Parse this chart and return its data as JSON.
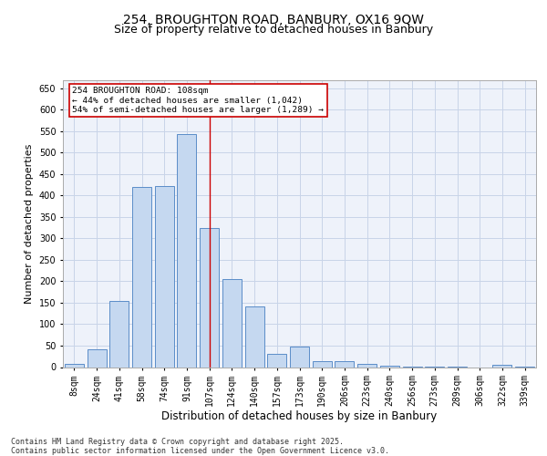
{
  "title_line1": "254, BROUGHTON ROAD, BANBURY, OX16 9QW",
  "title_line2": "Size of property relative to detached houses in Banbury",
  "xlabel": "Distribution of detached houses by size in Banbury",
  "ylabel": "Number of detached properties",
  "categories": [
    "8sqm",
    "24sqm",
    "41sqm",
    "58sqm",
    "74sqm",
    "91sqm",
    "107sqm",
    "124sqm",
    "140sqm",
    "157sqm",
    "173sqm",
    "190sqm",
    "206sqm",
    "223sqm",
    "240sqm",
    "256sqm",
    "273sqm",
    "289sqm",
    "306sqm",
    "322sqm",
    "339sqm"
  ],
  "values": [
    8,
    42,
    155,
    420,
    422,
    543,
    325,
    205,
    142,
    30,
    48,
    14,
    14,
    8,
    4,
    2,
    1,
    1,
    0,
    5,
    1
  ],
  "bar_color": "#c5d8f0",
  "bar_edge_color": "#5b8dc8",
  "highlight_index": 6,
  "highlight_line_color": "#cc0000",
  "annotation_text": "254 BROUGHTON ROAD: 108sqm\n← 44% of detached houses are smaller (1,042)\n54% of semi-detached houses are larger (1,289) →",
  "annotation_box_color": "#ffffff",
  "annotation_box_edge": "#cc0000",
  "ylim": [
    0,
    670
  ],
  "yticks": [
    0,
    50,
    100,
    150,
    200,
    250,
    300,
    350,
    400,
    450,
    500,
    550,
    600,
    650
  ],
  "grid_color": "#c8d4e8",
  "background_color": "#eef2fa",
  "footer_text": "Contains HM Land Registry data © Crown copyright and database right 2025.\nContains public sector information licensed under the Open Government Licence v3.0.",
  "title_fontsize": 10,
  "subtitle_fontsize": 9,
  "axis_label_fontsize": 8,
  "tick_fontsize": 7,
  "footer_fontsize": 6
}
